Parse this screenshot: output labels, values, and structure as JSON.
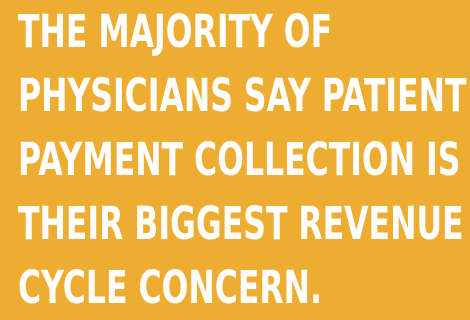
{
  "background_color": "#EDAD32",
  "text_color": "#FFFFFF",
  "headline": {
    "lines": [
      "THE MAJORITY OF",
      "PHYSICIANS SAY PATIENT",
      "PAYMENT COLLECTION IS",
      "THEIR BIGGEST REVENUE",
      "CYCLE CONCERN."
    ]
  }
}
